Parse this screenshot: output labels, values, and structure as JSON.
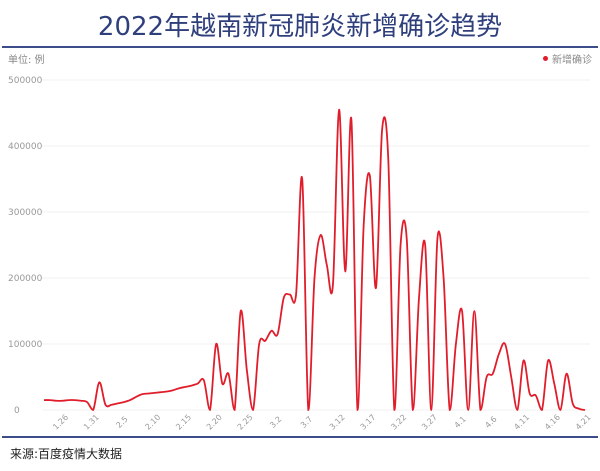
{
  "title": "2022年越南新冠肺炎新增确诊趋势",
  "unit": "单位: 例",
  "source": "来源:百度疫情大数据",
  "colors": {
    "line": "#e01e2b",
    "title": "#2e3f7c",
    "rule": "#3d4d8a"
  },
  "chart_data": {
    "type": "line",
    "title": "2022年越南新冠肺炎新增确诊趋势",
    "ylabel": "单位: 例",
    "ylim": [
      0,
      500000
    ],
    "yticks": [
      0,
      100000,
      200000,
      300000,
      400000,
      500000
    ],
    "grid": true,
    "legend_position": "top-right",
    "xtick_labels": [
      "1.26",
      "1.31",
      "2.5",
      "2.10",
      "2.15",
      "2.20",
      "2.25",
      "3.2",
      "3.7",
      "3.12",
      "3.17",
      "3.22",
      "3.27",
      "4.1",
      "4.6",
      "4.11",
      "4.16",
      "4.21"
    ],
    "series": [
      {
        "name": "新增确诊",
        "x": [
          "1.23",
          "1.24",
          "1.25",
          "1.26",
          "1.27",
          "1.28",
          "1.29",
          "1.30",
          "1.31",
          "2.1",
          "2.2",
          "2.3",
          "2.4",
          "2.5",
          "2.6",
          "2.7",
          "2.8",
          "2.9",
          "2.10",
          "2.11",
          "2.12",
          "2.13",
          "2.14",
          "2.15",
          "2.16",
          "2.17",
          "2.18",
          "2.19",
          "2.20",
          "2.21",
          "2.22",
          "2.23",
          "2.24",
          "2.25",
          "2.26",
          "2.27",
          "2.28",
          "3.1",
          "3.2",
          "3.3",
          "3.4",
          "3.5",
          "3.6",
          "3.7",
          "3.8",
          "3.9",
          "3.10",
          "3.11",
          "3.12",
          "3.13",
          "3.14",
          "3.15",
          "3.16",
          "3.17",
          "3.18",
          "3.19",
          "3.20",
          "3.21",
          "3.22",
          "3.23",
          "3.24",
          "3.25",
          "3.26",
          "3.27",
          "3.28",
          "3.29",
          "3.30",
          "3.31",
          "4.1",
          "4.2",
          "4.3",
          "4.4",
          "4.5",
          "4.6",
          "4.7",
          "4.8",
          "4.9",
          "4.10",
          "4.11",
          "4.12",
          "4.13",
          "4.14",
          "4.15",
          "4.16",
          "4.17",
          "4.18",
          "4.19",
          "4.20",
          "4.21"
        ],
        "values": [
          15000,
          15000,
          14000,
          14000,
          15000,
          15000,
          14000,
          12000,
          0,
          42000,
          8000,
          8000,
          10000,
          12000,
          15000,
          20000,
          24000,
          25000,
          26000,
          27000,
          28000,
          30000,
          33000,
          35000,
          37000,
          40000,
          45000,
          0,
          100000,
          40000,
          55000,
          0,
          150000,
          60000,
          0,
          100000,
          105000,
          120000,
          115000,
          170000,
          175000,
          175000,
          350000,
          0,
          200000,
          265000,
          220000,
          190000,
          455000,
          210000,
          440000,
          0,
          280000,
          355000,
          185000,
          425000,
          380000,
          0,
          250000,
          260000,
          0,
          170000,
          250000,
          0,
          260000,
          200000,
          0,
          100000,
          150000,
          0,
          150000,
          0,
          50000,
          55000,
          85000,
          100000,
          50000,
          0,
          75000,
          25000,
          22000,
          0,
          75000,
          40000,
          0,
          55000,
          10000,
          2000,
          0
        ]
      }
    ]
  }
}
